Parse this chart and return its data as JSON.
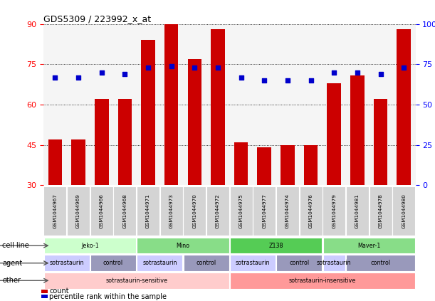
{
  "title": "GDS5309 / 223992_x_at",
  "samples": [
    "GSM1044967",
    "GSM1044969",
    "GSM1044966",
    "GSM1044968",
    "GSM1044971",
    "GSM1044973",
    "GSM1044970",
    "GSM1044972",
    "GSM1044975",
    "GSM1044977",
    "GSM1044974",
    "GSM1044976",
    "GSM1044979",
    "GSM1044981",
    "GSM1044978",
    "GSM1044980"
  ],
  "counts": [
    47,
    47,
    62,
    62,
    84,
    90,
    77,
    88,
    46,
    44,
    45,
    45,
    68,
    71,
    62,
    88
  ],
  "percentiles": [
    67,
    67,
    70,
    69,
    73,
    74,
    73,
    73,
    67,
    65,
    65,
    65,
    70,
    70,
    69,
    73
  ],
  "ylim_left": [
    30,
    90
  ],
  "ylim_right": [
    0,
    100
  ],
  "yticks_left": [
    30,
    45,
    60,
    75,
    90
  ],
  "yticks_right": [
    0,
    25,
    50,
    75,
    100
  ],
  "bar_color": "#cc0000",
  "dot_color": "#0000cc",
  "cell_lines": [
    {
      "label": "Jeko-1",
      "start": 0,
      "end": 4,
      "color": "#ccffcc"
    },
    {
      "label": "Mino",
      "start": 4,
      "end": 8,
      "color": "#88dd88"
    },
    {
      "label": "Z138",
      "start": 8,
      "end": 12,
      "color": "#55cc55"
    },
    {
      "label": "Maver-1",
      "start": 12,
      "end": 16,
      "color": "#88dd88"
    }
  ],
  "agents": [
    {
      "label": "sotrastaurin",
      "start": 0,
      "end": 2,
      "color": "#ccccff"
    },
    {
      "label": "control",
      "start": 2,
      "end": 4,
      "color": "#9999bb"
    },
    {
      "label": "sotrastaurin",
      "start": 4,
      "end": 6,
      "color": "#ccccff"
    },
    {
      "label": "control",
      "start": 6,
      "end": 8,
      "color": "#9999bb"
    },
    {
      "label": "sotrastaurin",
      "start": 8,
      "end": 10,
      "color": "#ccccff"
    },
    {
      "label": "control",
      "start": 10,
      "end": 12,
      "color": "#9999bb"
    },
    {
      "label": "sotrastaurin",
      "start": 12,
      "end": 13,
      "color": "#ccccff"
    },
    {
      "label": "control",
      "start": 13,
      "end": 16,
      "color": "#9999bb"
    }
  ],
  "others": [
    {
      "label": "sotrastaurin-sensitive",
      "start": 0,
      "end": 8,
      "color": "#ffcccc"
    },
    {
      "label": "sotrastaurin-insensitive",
      "start": 8,
      "end": 16,
      "color": "#ff9999"
    }
  ],
  "row_labels": [
    "cell line",
    "agent",
    "other"
  ],
  "legend_count_label": "count",
  "legend_pct_label": "percentile rank within the sample"
}
